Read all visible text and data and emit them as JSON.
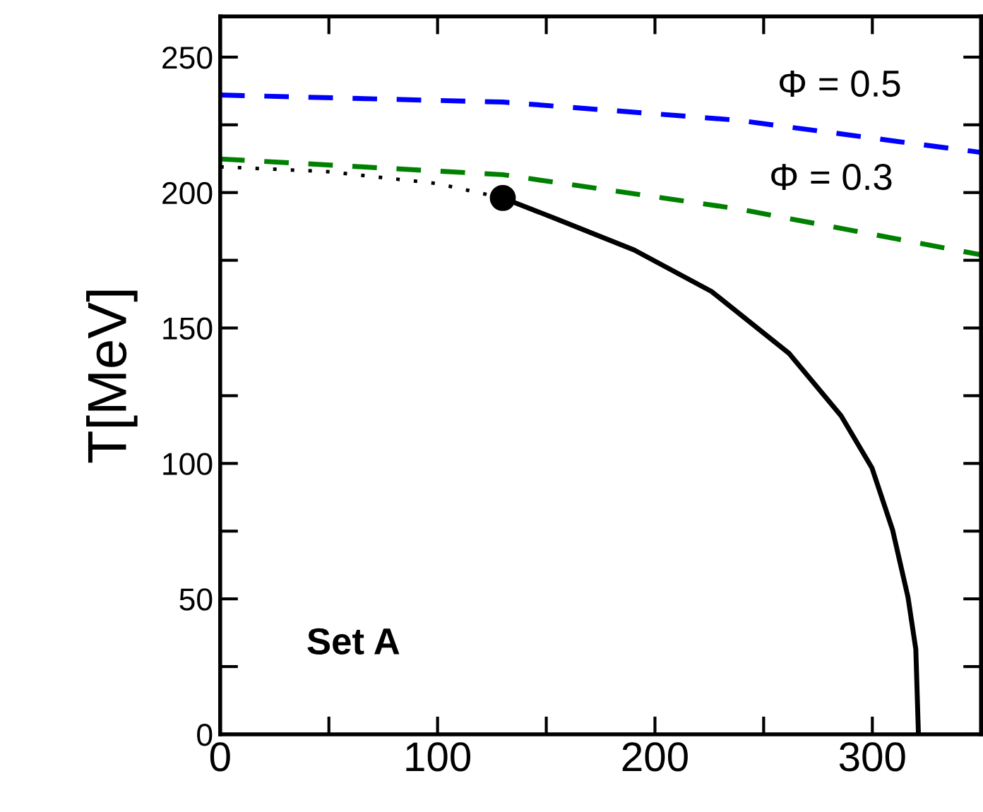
{
  "chart_data": {
    "type": "line",
    "ylabel": "T[MeV]",
    "xlim": [
      0,
      350
    ],
    "ylim": [
      0,
      265
    ],
    "xticks": [
      0,
      {
        "value": 50,
        "label": null
      },
      100,
      {
        "value": 150,
        "label": null
      },
      200,
      {
        "value": 250,
        "label": null
      },
      300
    ],
    "yticks": [
      0,
      {
        "value": 25,
        "label": null
      },
      50,
      {
        "value": 75,
        "label": null
      },
      100,
      {
        "value": 125,
        "label": null
      },
      150,
      {
        "value": 175,
        "label": null
      },
      200,
      {
        "value": 225,
        "label": null
      },
      250
    ],
    "grid": false,
    "legend": false,
    "series": [
      {
        "color": "#0000ff",
        "line_style": "dashed",
        "x": [
          0,
          130,
          238,
          350
        ],
        "values": [
          236,
          233.4,
          226.7,
          214.8
        ]
      },
      {
        "color": "#008000",
        "line_style": "dashed",
        "x": [
          0,
          130,
          238,
          350
        ],
        "values": [
          212.4,
          206.6,
          194,
          177
        ]
      },
      {
        "color": "#000000",
        "line_style": "dotted",
        "x": [
          0,
          50,
          100,
          130
        ],
        "values": [
          209.5,
          207.7,
          203.3,
          198
        ]
      },
      {
        "color": "#000000",
        "line_style": "solid",
        "x": [
          130,
          154.6,
          190.4,
          226,
          261.7,
          285.6,
          299.8,
          309.3,
          316.4,
          320,
          321.2
        ],
        "values": [
          198,
          190.3,
          178.8,
          163.5,
          140.6,
          117.6,
          98.4,
          75.5,
          50.6,
          31.4,
          0
        ]
      },
      {
        "type": "scatter",
        "color": "#000000",
        "marker": "circle",
        "x": [
          130
        ],
        "values": [
          198
        ]
      }
    ],
    "annotations": [
      "Φ = 0.5",
      "Φ = 0.3",
      "Set A"
    ]
  }
}
